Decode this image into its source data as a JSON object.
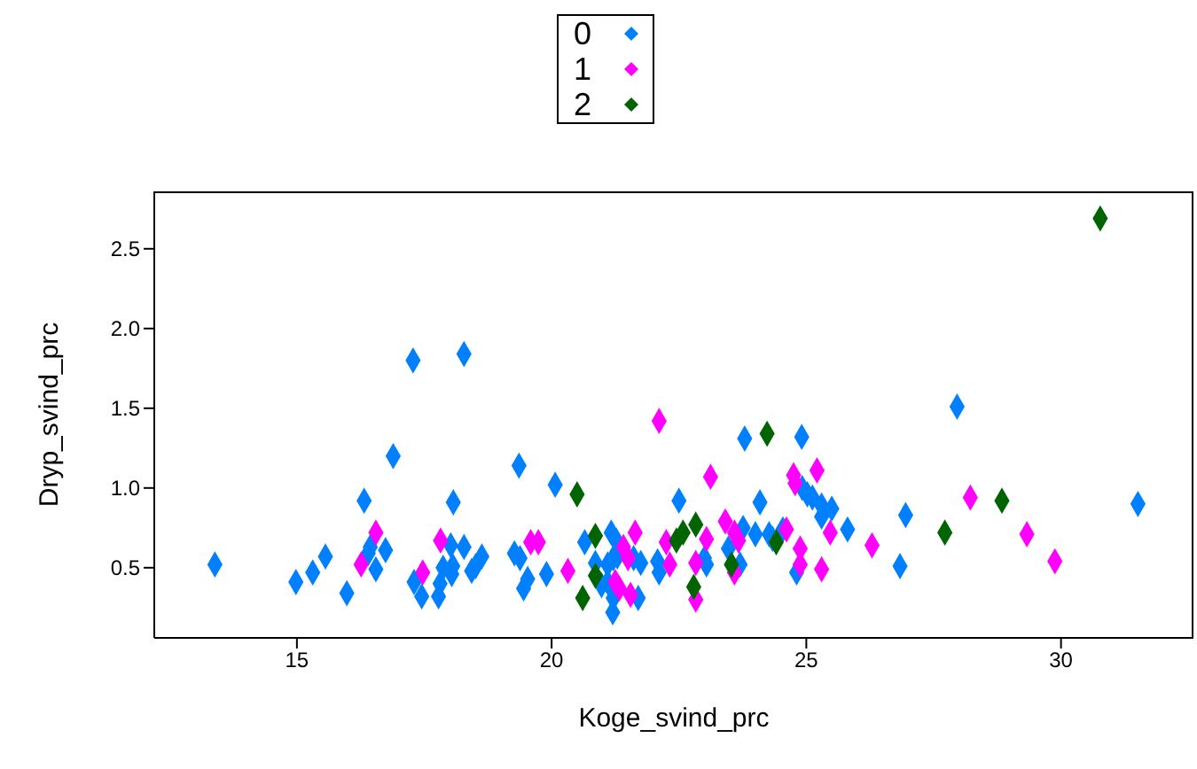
{
  "chart_data": {
    "type": "scatter",
    "xlabel": "Koge_svind_prc",
    "ylabel": "Dryp_svind_prc",
    "xlim": [
      12.2,
      32.6
    ],
    "ylim": [
      0.06,
      2.86
    ],
    "xticks": [
      15,
      20,
      25,
      30
    ],
    "yticks": [
      0.5,
      {
        "value": 1,
        "label": "1.0"
      },
      1.5,
      {
        "value": 2,
        "label": "2.0"
      },
      2.5
    ],
    "grid": false,
    "legend": "top",
    "marker": "diamond",
    "series": [
      {
        "name": "0",
        "color": "#0080ff",
        "x": [
          13.39,
          14.98,
          15.31,
          15.56,
          15.98,
          16.32,
          16.4,
          16.44,
          16.74,
          16.55,
          16.89,
          17.28,
          18.28,
          17.3,
          17.45,
          17.78,
          17.81,
          17.87,
          18.06,
          18.04,
          18.02,
          18.28,
          18.07,
          18.43,
          18.51,
          18.63,
          19.36,
          20.07,
          19.27,
          19.38,
          19.45,
          19.53,
          19.9,
          20.65,
          20.86,
          21.17,
          21.1,
          21.21,
          21.29,
          20.98,
          21.1,
          21.21,
          21.2,
          21.27,
          21.61,
          21.75,
          21.7,
          22.08,
          22.11,
          22.5,
          23.0,
          23.04,
          23.47,
          23.76,
          23.7,
          23.79,
          24.0,
          24.27,
          24.09,
          24.34,
          24.54,
          24.91,
          24.81,
          24.92,
          25.02,
          25.12,
          25.3,
          25.5,
          25.3,
          25.81,
          27.96,
          31.51,
          26.95,
          26.84
        ],
        "values": [
          0.52,
          0.41,
          0.47,
          0.57,
          0.34,
          0.92,
          0.59,
          0.63,
          0.61,
          0.49,
          1.2,
          1.8,
          1.84,
          0.41,
          0.32,
          0.32,
          0.4,
          0.5,
          0.51,
          0.46,
          0.64,
          0.63,
          0.91,
          0.48,
          0.51,
          0.57,
          1.14,
          1.02,
          0.59,
          0.56,
          0.37,
          0.43,
          0.46,
          0.66,
          0.53,
          0.72,
          0.52,
          0.56,
          0.57,
          0.39,
          0.41,
          0.31,
          0.22,
          0.67,
          0.56,
          0.53,
          0.31,
          0.54,
          0.47,
          0.92,
          0.56,
          0.52,
          0.62,
          0.75,
          0.52,
          1.31,
          0.71,
          0.71,
          0.91,
          0.68,
          0.74,
          1.32,
          0.47,
          1.0,
          0.96,
          0.94,
          0.89,
          0.87,
          0.82,
          0.74,
          1.51,
          0.9,
          0.83,
          0.51
        ]
      },
      {
        "name": "1",
        "color": "#ff00ff",
        "x": [
          16.55,
          16.26,
          17.47,
          17.82,
          22.11,
          19.59,
          19.74,
          20.32,
          21.64,
          21.41,
          21.5,
          21.25,
          21.33,
          21.55,
          22.25,
          22.32,
          22.83,
          22.83,
          23.04,
          23.12,
          23.41,
          23.59,
          23.67,
          23.59,
          24.61,
          24.75,
          24.78,
          25.21,
          24.88,
          24.88,
          25.3,
          25.47,
          28.22,
          29.33,
          29.88,
          26.29
        ],
        "values": [
          0.72,
          0.52,
          0.47,
          0.67,
          1.42,
          0.66,
          0.66,
          0.48,
          0.72,
          0.63,
          0.56,
          0.41,
          0.37,
          0.33,
          0.66,
          0.52,
          0.53,
          0.3,
          0.68,
          1.07,
          0.79,
          0.72,
          0.67,
          0.47,
          0.74,
          1.08,
          1.03,
          1.11,
          0.62,
          0.52,
          0.49,
          0.72,
          0.94,
          0.71,
          0.54,
          0.64
        ]
      },
      {
        "name": "2",
        "color": "#006400",
        "x": [
          20.5,
          20.61,
          20.86,
          20.86,
          22.45,
          22.58,
          22.83,
          22.79,
          23.53,
          24.23,
          24.41,
          30.77,
          28.84,
          27.72
        ],
        "values": [
          0.96,
          0.31,
          0.7,
          0.45,
          0.67,
          0.72,
          0.77,
          0.38,
          0.52,
          1.34,
          0.66,
          2.69,
          0.92,
          0.72
        ]
      }
    ]
  }
}
